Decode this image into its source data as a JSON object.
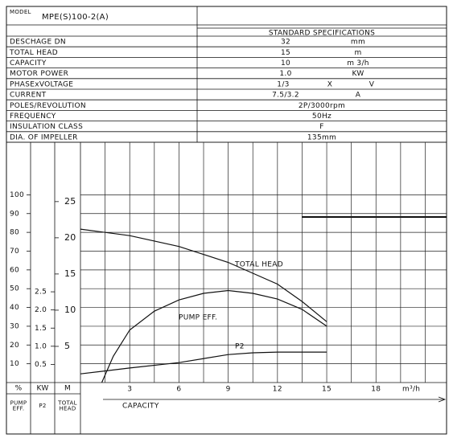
{
  "model": {
    "label": "MODEL",
    "value": "MPE(S)100-2(A)"
  },
  "specs": {
    "title": "STANDARD SPECIFICATIONS",
    "rows": [
      [
        "DESCHAGE DN",
        "32",
        "mm"
      ],
      [
        "TOTAL HEAD",
        "15",
        "m"
      ],
      [
        "CAPACITY",
        "10",
        "m 3/h"
      ],
      [
        "MOTOR POWER",
        "1.0",
        "KW"
      ],
      [
        "PHASExVOLTAGE",
        "1/3",
        "X",
        "V"
      ],
      [
        "CURRENT",
        "7.5/3.2",
        "A"
      ],
      [
        "POLES/REVOLUTION",
        "2P/3000rpm"
      ],
      [
        "FREQUENCY",
        "50Hz"
      ],
      [
        "INSULATION CLASS",
        "F"
      ],
      [
        "DIA. OF IMPELLER",
        "135mm"
      ]
    ]
  },
  "chart_data": {
    "type": "line",
    "x_label": "CAPACITY",
    "x_unit": "m³/h",
    "xlim": [
      0,
      22.3
    ],
    "xticks": [
      3,
      6,
      9,
      12,
      15,
      18
    ],
    "axes": {
      "pct": {
        "unit": "%",
        "name": [
          "PUMP",
          "EFF."
        ],
        "ylim": [
          0,
          128
        ],
        "yticks": [
          10,
          20,
          30,
          40,
          50,
          60,
          70,
          80,
          90,
          100
        ]
      },
      "kw": {
        "unit": "KW",
        "name": [
          "P2"
        ],
        "ylim": [
          0,
          6.62
        ],
        "yticks": [
          0.5,
          {
            "value": 1,
            "label": "1.0"
          },
          1.5,
          {
            "value": 2,
            "label": "2.0"
          },
          2.5
        ]
      },
      "m": {
        "unit": "M",
        "name": [
          "TOTAL",
          "HEAD"
        ],
        "ylim": [
          0,
          33.2
        ],
        "yticks": [
          5,
          10,
          15,
          20,
          25
        ]
      }
    },
    "series": [
      {
        "name": "TOTAL HEAD",
        "axis": "m",
        "color": "#111111",
        "x": [
          0,
          3,
          6,
          9,
          12,
          13.5,
          15
        ],
        "values": [
          21.2,
          20.3,
          18.8,
          16.6,
          13.6,
          11.2,
          8.4
        ]
      },
      {
        "name": "PUMP EFF.",
        "axis": "pct",
        "color": "#111111",
        "x": [
          1.3,
          2,
          3,
          4.5,
          6,
          7.5,
          9,
          10.5,
          12,
          13.5,
          15
        ],
        "values": [
          0,
          14,
          28,
          38,
          44,
          47.5,
          49,
          47.5,
          44.5,
          39,
          30
        ]
      },
      {
        "name": "P2",
        "axis": "kw",
        "color": "#111111",
        "x": [
          0,
          3,
          6,
          9,
          10.5,
          12,
          15
        ],
        "values": [
          0.24,
          0.4,
          0.55,
          0.77,
          0.82,
          0.84,
          0.84
        ]
      }
    ]
  }
}
